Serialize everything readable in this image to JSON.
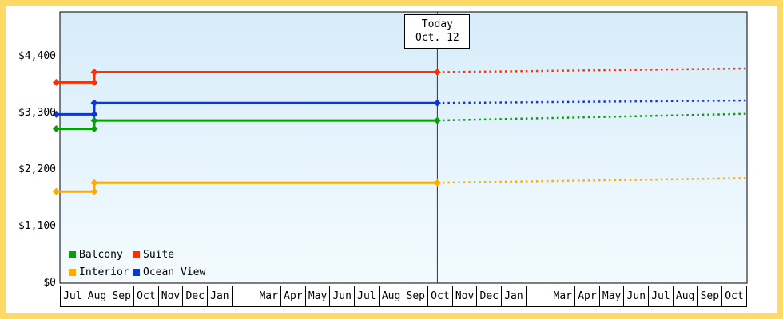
{
  "page": {
    "background_color": "#ffd966"
  },
  "chart_data": {
    "type": "line",
    "title": "",
    "plot": {
      "bg_top": "#d6ecf9",
      "bg_bottom": "#f4fbff",
      "border_color": "#000000",
      "today_line_color": "#333333"
    },
    "today": {
      "label_line1": "Today",
      "label_line2": "Oct. 12",
      "month_position": 15.38
    },
    "y_axis": {
      "ylim": [
        0,
        5270
      ],
      "ticks": [
        {
          "label": "$4,400",
          "value": 4400
        },
        {
          "label": "$3,300",
          "value": 3300
        },
        {
          "label": "$2,200",
          "value": 2200
        },
        {
          "label": "$1,100",
          "value": 1100
        },
        {
          "label": "$0",
          "value": 0
        }
      ]
    },
    "x_axis": {
      "months": [
        "Jul",
        "Aug",
        "Sep",
        "Oct",
        "Nov",
        "Dec",
        "Jan",
        "",
        "Mar",
        "Apr",
        "May",
        "Jun",
        "Jul",
        "Aug",
        "Sep",
        "Oct",
        "Nov",
        "Dec",
        "Jan",
        "",
        "Mar",
        "Apr",
        "May",
        "Jun",
        "Jul",
        "Aug",
        "Sep",
        "Oct"
      ]
    },
    "series": [
      {
        "name": "Interior",
        "color": "#ffaa00",
        "solid": [
          [
            -0.15,
            1780
          ],
          [
            1.4,
            1780
          ],
          [
            1.4,
            1950
          ],
          [
            15.38,
            1950
          ]
        ],
        "dashed": [
          [
            15.38,
            1950
          ],
          [
            28,
            2040
          ]
        ],
        "markers": [
          [
            -0.15,
            1780
          ],
          [
            1.4,
            1780
          ],
          [
            1.4,
            1950
          ],
          [
            15.38,
            1950
          ]
        ]
      },
      {
        "name": "Balcony",
        "color": "#0c9b0c",
        "solid": [
          [
            -0.15,
            3000
          ],
          [
            1.4,
            3000
          ],
          [
            1.4,
            3160
          ],
          [
            15.38,
            3160
          ]
        ],
        "dashed": [
          [
            15.38,
            3160
          ],
          [
            28,
            3290
          ]
        ],
        "markers": [
          [
            -0.15,
            3000
          ],
          [
            1.4,
            3000
          ],
          [
            1.4,
            3160
          ],
          [
            15.38,
            3160
          ]
        ]
      },
      {
        "name": "Ocean View",
        "color": "#0d36d4",
        "solid": [
          [
            -0.15,
            3280
          ],
          [
            1.4,
            3280
          ],
          [
            1.4,
            3500
          ],
          [
            15.38,
            3500
          ]
        ],
        "dashed": [
          [
            15.38,
            3500
          ],
          [
            28,
            3550
          ]
        ],
        "markers": [
          [
            -0.15,
            3280
          ],
          [
            1.4,
            3280
          ],
          [
            1.4,
            3500
          ],
          [
            15.38,
            3500
          ]
        ]
      },
      {
        "name": "Suite",
        "color": "#fe2f00",
        "solid": [
          [
            -0.15,
            3900
          ],
          [
            1.4,
            3900
          ],
          [
            1.4,
            4100
          ],
          [
            15.38,
            4100
          ]
        ],
        "dashed": [
          [
            15.38,
            4100
          ],
          [
            28,
            4170
          ]
        ],
        "markers": [
          [
            -0.15,
            3900
          ],
          [
            1.4,
            3900
          ],
          [
            1.4,
            4100
          ],
          [
            15.38,
            4100
          ]
        ]
      }
    ],
    "legend": {
      "position": "bottom-left",
      "items": [
        "Balcony",
        "Suite",
        "Interior",
        "Ocean View"
      ]
    }
  }
}
